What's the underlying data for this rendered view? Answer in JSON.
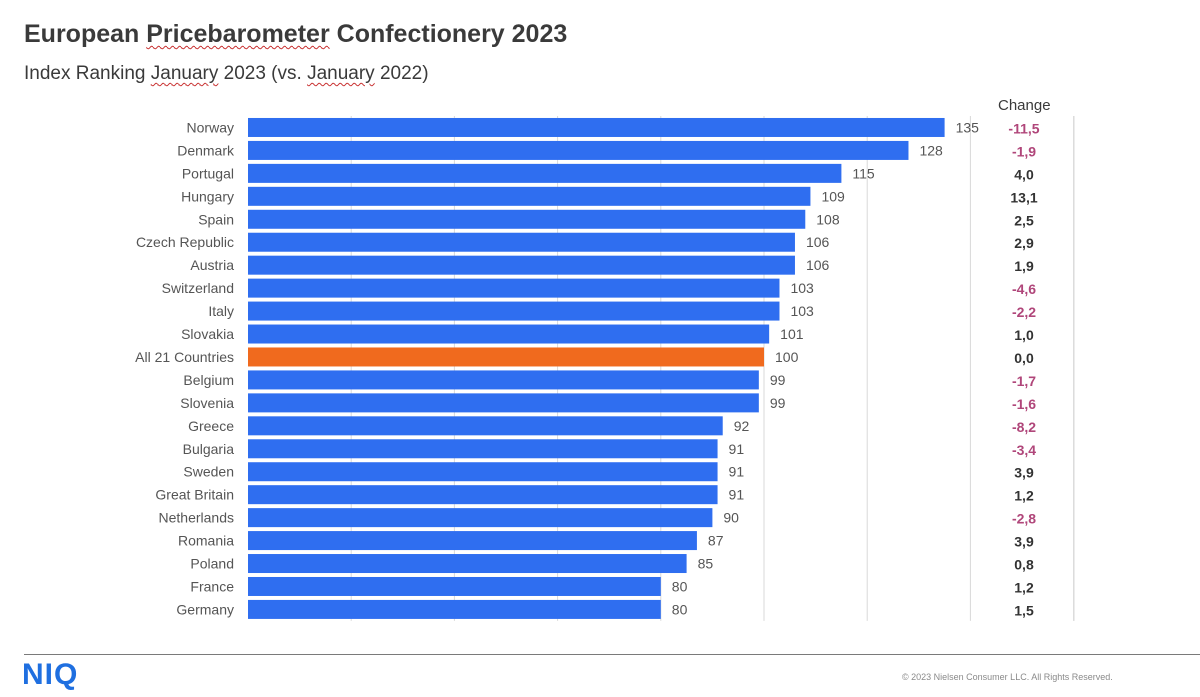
{
  "title_parts": [
    "European ",
    "Pricebarometer",
    " Confectionery 2023"
  ],
  "subtitle_parts": [
    "Index Ranking ",
    "January",
    " 2023 (vs. ",
    "January",
    " 2022)"
  ],
  "change_header": "Change",
  "footer": {
    "logo": "NIQ",
    "copyright": "© 2023 Nielsen Consumer LLC. All Rights Reserved."
  },
  "colors": {
    "bar": "#2f6ef0",
    "highlight": "#f06a1e",
    "positive_change": "#333333",
    "negative_change": "#b0467a",
    "grid": "#d9d9d9"
  },
  "chart_data": {
    "type": "bar",
    "orientation": "horizontal",
    "categories": [
      "Norway",
      "Denmark",
      "Portugal",
      "Hungary",
      "Spain",
      "Czech Republic",
      "Austria",
      "Switzerland",
      "Italy",
      "Slovakia",
      "All 21 Countries",
      "Belgium",
      "Slovenia",
      "Greece",
      "Bulgaria",
      "Sweden",
      "Great Britain",
      "Netherlands",
      "Romania",
      "Poland",
      "France",
      "Germany"
    ],
    "values": [
      135,
      128,
      115,
      109,
      108,
      106,
      106,
      103,
      103,
      101,
      100,
      99,
      99,
      92,
      91,
      91,
      91,
      90,
      87,
      85,
      80,
      80
    ],
    "change_labels": [
      "-11,5",
      "-1,9",
      "4,0",
      "13,1",
      "2,5",
      "2,9",
      "1,9",
      "-4,6",
      "-2,2",
      "1,0",
      "0,0",
      "-1,7",
      "-1,6",
      "-8,2",
      "-3,4",
      "3,9",
      "1,2",
      "-2,8",
      "3,9",
      "0,8",
      "1,2",
      "1,5"
    ],
    "highlight_category": "All 21 Countries",
    "xlim": [
      0,
      160
    ],
    "grid": "vertical",
    "legend": "none"
  }
}
